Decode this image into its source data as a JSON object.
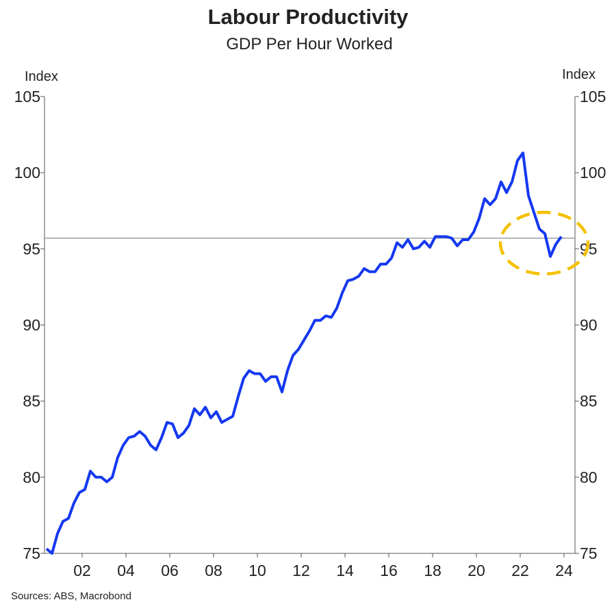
{
  "chart_data": {
    "type": "line",
    "title": "Labour Productivity",
    "subtitle": "GDP Per Hour Worked",
    "ylabel": "Index",
    "y2label": "Index",
    "source": "Sources: ABS, Macrobond",
    "x": [
      2000.375,
      2000.625,
      2000.875,
      2001.125,
      2001.375,
      2001.625,
      2001.875,
      2002.125,
      2002.375,
      2002.625,
      2002.875,
      2003.125,
      2003.375,
      2003.625,
      2003.875,
      2004.125,
      2004.375,
      2004.625,
      2004.875,
      2005.125,
      2005.375,
      2005.625,
      2005.875,
      2006.125,
      2006.375,
      2006.625,
      2006.875,
      2007.125,
      2007.375,
      2007.625,
      2007.875,
      2008.125,
      2008.375,
      2008.625,
      2008.875,
      2009.125,
      2009.375,
      2009.625,
      2009.875,
      2010.125,
      2010.375,
      2010.625,
      2010.875,
      2011.125,
      2011.375,
      2011.625,
      2011.875,
      2012.125,
      2012.375,
      2012.625,
      2012.875,
      2013.125,
      2013.375,
      2013.625,
      2013.875,
      2014.125,
      2014.375,
      2014.625,
      2014.875,
      2015.125,
      2015.375,
      2015.625,
      2015.875,
      2016.125,
      2016.375,
      2016.625,
      2016.875,
      2017.125,
      2017.375,
      2017.625,
      2017.875,
      2018.125,
      2018.375,
      2018.625,
      2018.875,
      2019.125,
      2019.375,
      2019.625,
      2019.875,
      2020.125,
      2020.375,
      2020.625,
      2020.875,
      2021.125,
      2021.375,
      2021.625,
      2021.875,
      2022.125,
      2022.375,
      2022.625,
      2022.875,
      2023.125,
      2023.375,
      2023.625,
      2023.875
    ],
    "series": [
      {
        "name": "GDP Per Hour Worked",
        "color": "#1438f0",
        "values": [
          75.3,
          75.0,
          76.3,
          77.1,
          77.3,
          78.3,
          79.0,
          79.2,
          80.4,
          80.0,
          80.0,
          79.7,
          80.0,
          81.3,
          82.1,
          82.6,
          82.7,
          83.0,
          82.7,
          82.1,
          81.8,
          82.6,
          83.6,
          83.5,
          82.6,
          82.9,
          83.4,
          84.5,
          84.1,
          84.6,
          83.9,
          84.3,
          83.6,
          83.8,
          84.0,
          85.3,
          86.5,
          87.0,
          86.8,
          86.8,
          86.3,
          86.6,
          86.6,
          85.6,
          87.0,
          88.0,
          88.4,
          89.0,
          89.6,
          90.3,
          90.3,
          90.6,
          90.5,
          91.1,
          92.1,
          92.9,
          93.0,
          93.2,
          93.7,
          93.5,
          93.5,
          94.0,
          94.0,
          94.4,
          95.4,
          95.1,
          95.6,
          95.0,
          95.1,
          95.5,
          95.1,
          95.8,
          95.8,
          95.8,
          95.7,
          95.2,
          95.6,
          95.6,
          96.1,
          97.0,
          98.3,
          97.9,
          98.3,
          99.4,
          98.7,
          99.4,
          100.8,
          101.3,
          98.5,
          97.4,
          96.3,
          96.0,
          94.5,
          95.3,
          95.8
        ]
      }
    ],
    "xlim": [
      2000.28,
      2024.5
    ],
    "xticks": [
      {
        "value": 2002,
        "label": "02"
      },
      {
        "value": 2004,
        "label": "04"
      },
      {
        "value": 2006,
        "label": "06"
      },
      {
        "value": 2008,
        "label": "08"
      },
      {
        "value": 2010,
        "label": "10"
      },
      {
        "value": 2012,
        "label": "12"
      },
      {
        "value": 2014,
        "label": "14"
      },
      {
        "value": 2016,
        "label": "16"
      },
      {
        "value": 2018,
        "label": "18"
      },
      {
        "value": 2020,
        "label": "20"
      },
      {
        "value": 2022,
        "label": "22"
      },
      {
        "value": 2024,
        "label": "24"
      }
    ],
    "ylim": [
      75,
      105
    ],
    "yticks": [
      75,
      80,
      85,
      90,
      95,
      100,
      105
    ],
    "y2lim": [
      75,
      105
    ],
    "y2ticks": [
      75,
      80,
      85,
      90,
      95,
      100,
      105
    ],
    "reference_line": 95.7,
    "reference_color": "#8c8c8c",
    "highlight_color": "#f5c000"
  }
}
